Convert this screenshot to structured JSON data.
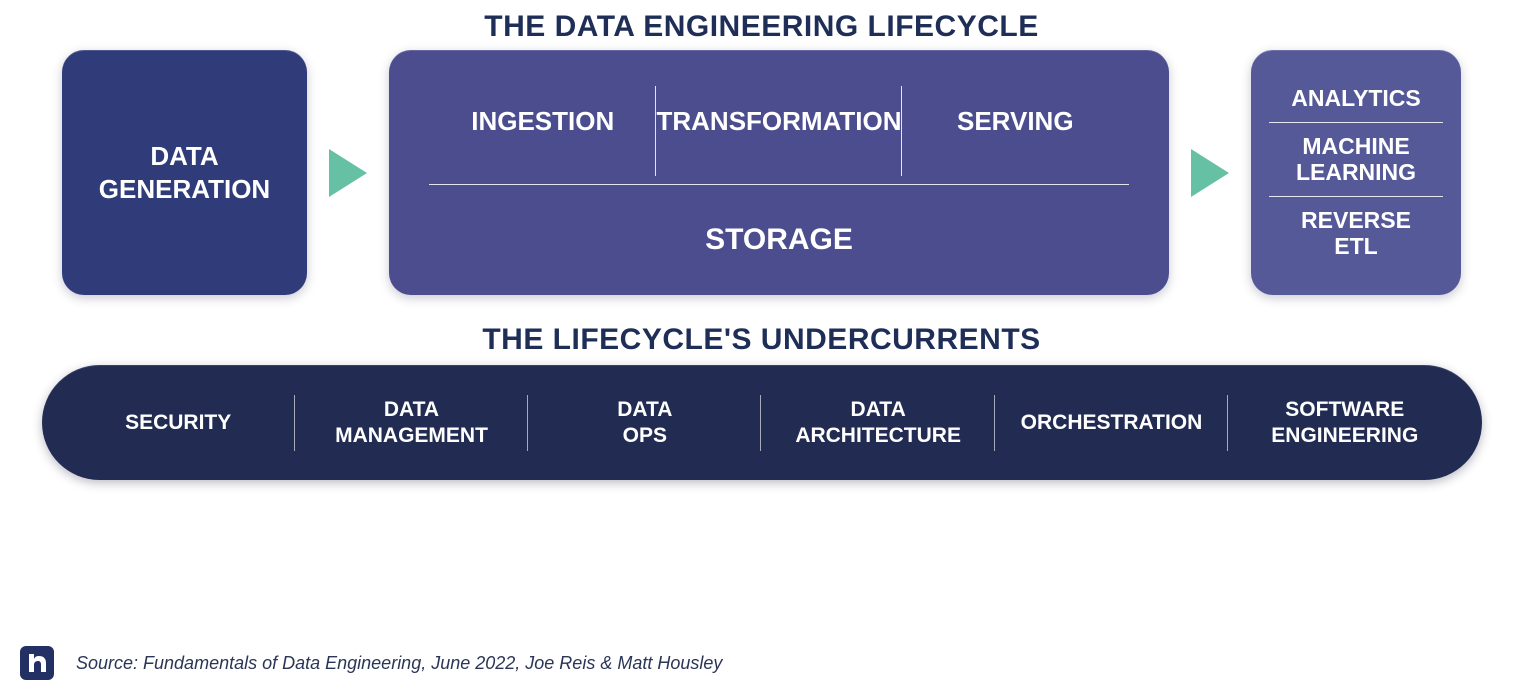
{
  "colors": {
    "title": "#1f2e57",
    "box_generation": "#2f3c79",
    "box_core": "#4b4d8e",
    "box_outputs": "#555998",
    "arrow": "#66c1a4",
    "under_bar": "#222c53",
    "source_text": "#2b3556",
    "logo_bg": "#223063",
    "logo_fg": "#ffffff",
    "white": "#ffffff"
  },
  "typography": {
    "title_fontsize": 30,
    "subtitle_fontsize": 30
  },
  "titles": {
    "main": "THE DATA ENGINEERING LIFECYCLE",
    "under": "THE LIFECYCLE'S UNDERCURRENTS"
  },
  "generation": {
    "line1": "DATA",
    "line2": "GENERATION"
  },
  "core": {
    "top": [
      "INGESTION",
      "TRANSFORMATION",
      "SERVING"
    ],
    "bottom": "STORAGE"
  },
  "outputs": [
    "ANALYTICS",
    "MACHINE LEARNING",
    "REVERSE ETL"
  ],
  "undercurrents": [
    "SECURITY",
    "DATA MANAGEMENT",
    "DATA OPS",
    "DATA ARCHITECTURE",
    "ORCHESTRATION",
    "SOFTWARE ENGINEERING"
  ],
  "source": "Source: Fundamentals of Data Engineering, June 2022, Joe Reis & Matt Housley"
}
